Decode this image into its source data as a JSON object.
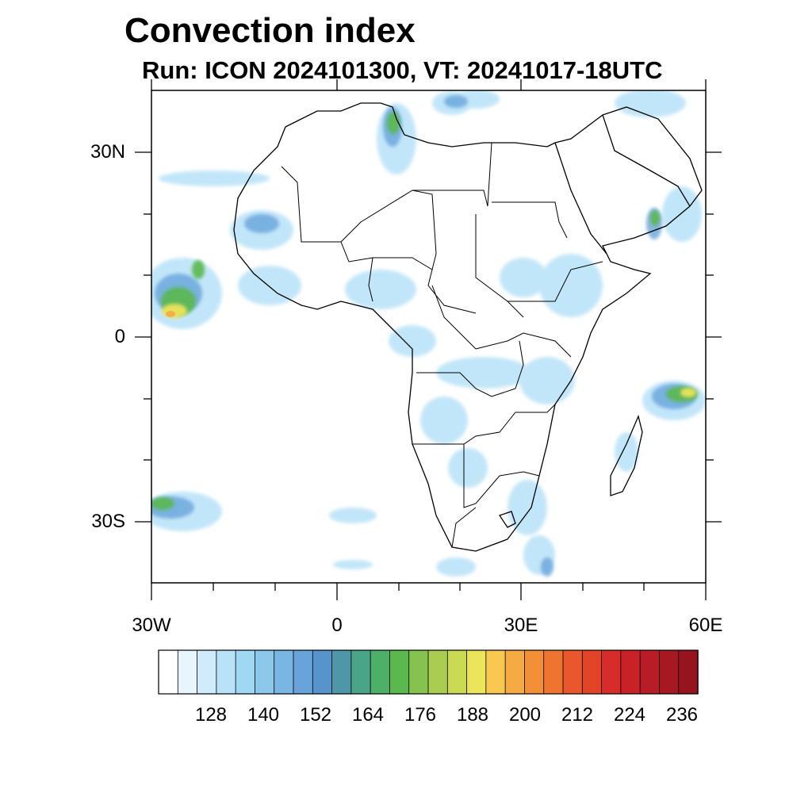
{
  "title": "Convection index",
  "subtitle": "Run: ICON 2024101300,  VT: 20241017-18UTC",
  "axes": {
    "lat_labels": [
      "30N",
      "0",
      "30S"
    ],
    "lon_labels": [
      "30W",
      "0",
      "30E",
      "60E"
    ]
  },
  "colorbar": {
    "labels": [
      "128",
      "140",
      "152",
      "164",
      "176",
      "188",
      "200",
      "212",
      "224",
      "236"
    ],
    "colors": [
      "#ffffff",
      "#e8f5fc",
      "#d0ecfa",
      "#b8e2f8",
      "#a0d8f4",
      "#8cc8ec",
      "#7ab6e4",
      "#68a4da",
      "#5894cc",
      "#4e96a8",
      "#4aa488",
      "#4cb068",
      "#5ab84e",
      "#86c250",
      "#aacc50",
      "#cada52",
      "#ece45a",
      "#f8c850",
      "#f6aa44",
      "#f29038",
      "#ee7430",
      "#e8582c",
      "#e24428",
      "#d82c2a",
      "#c82228",
      "#b81c26",
      "#a81822",
      "#961420"
    ]
  }
}
